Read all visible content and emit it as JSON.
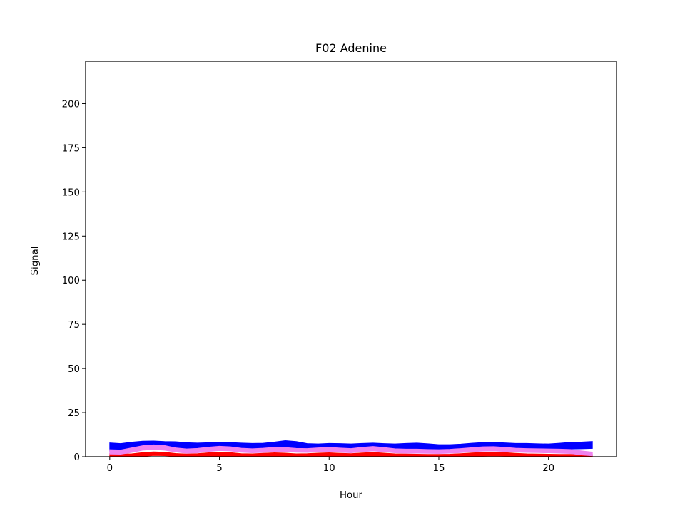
{
  "chart_data": {
    "type": "area",
    "title": "F02 Adenine",
    "xlabel": "Hour",
    "ylabel": "Signal",
    "xlim": [
      -1.1,
      23.1
    ],
    "ylim": [
      0,
      224
    ],
    "xticks": [
      0,
      5,
      10,
      15,
      20
    ],
    "yticks": [
      0,
      25,
      50,
      75,
      100,
      125,
      150,
      175,
      200
    ],
    "grid": false,
    "x": [
      0,
      0.5,
      1,
      1.5,
      2,
      2.5,
      3,
      3.5,
      4,
      4.5,
      5,
      5.5,
      6,
      6.5,
      7,
      7.5,
      8,
      8.5,
      9,
      9.5,
      10,
      10.5,
      11,
      11.5,
      12,
      12.5,
      13,
      13.5,
      14,
      14.5,
      15,
      15.5,
      16,
      16.5,
      17,
      17.5,
      18,
      18.5,
      19,
      19.5,
      20,
      20.5,
      21,
      21.5,
      22
    ],
    "series": [
      {
        "color": "#0000ff",
        "lower": [
          3.2,
          3.0,
          3.8,
          4.6,
          5.2,
          5.2,
          4.4,
          3.7,
          3.6,
          4.1,
          4.7,
          4.6,
          4.0,
          3.8,
          4.0,
          4.5,
          5.0,
          4.7,
          4.2,
          4.1,
          4.3,
          4.0,
          3.8,
          4.0,
          4.2,
          3.9,
          3.7,
          3.8,
          3.9,
          3.6,
          3.3,
          3.4,
          3.8,
          4.3,
          4.6,
          4.6,
          4.2,
          4.0,
          4.0,
          3.8,
          3.6,
          4.0,
          4.4,
          4.5,
          4.7
        ],
        "upper": [
          7.8,
          7.4,
          8.2,
          8.8,
          8.9,
          8.6,
          8.5,
          7.9,
          7.7,
          7.9,
          8.2,
          8.0,
          7.7,
          7.5,
          7.6,
          8.3,
          9.1,
          8.6,
          7.4,
          7.2,
          7.5,
          7.4,
          7.2,
          7.5,
          7.7,
          7.4,
          7.2,
          7.5,
          7.7,
          7.3,
          6.8,
          6.8,
          7.1,
          7.6,
          8.0,
          8.1,
          7.8,
          7.5,
          7.5,
          7.3,
          7.2,
          7.6,
          8.1,
          8.3,
          8.6
        ]
      },
      {
        "color": "#ff0000",
        "lower": [
          0.3,
          0.0,
          0.0,
          0.2,
          0.7,
          0.6,
          0.2,
          0.0,
          0.0,
          0.1,
          0.3,
          0.3,
          0.0,
          0.0,
          0.0,
          0.2,
          0.2,
          0.0,
          0.0,
          0.1,
          0.2,
          0.0,
          0.0,
          0.1,
          0.3,
          0.1,
          0.0,
          0.0,
          0.0,
          0.0,
          0.0,
          0.0,
          0.0,
          0.1,
          0.4,
          0.5,
          0.4,
          0.1,
          0.0,
          0.0,
          0.0,
          0.0,
          0.0,
          0.0,
          0.0
        ],
        "upper": [
          1.8,
          1.4,
          1.6,
          2.3,
          2.7,
          2.5,
          1.8,
          1.5,
          1.7,
          2.2,
          2.5,
          2.3,
          1.7,
          1.6,
          1.9,
          2.2,
          2.0,
          1.6,
          1.7,
          2.0,
          2.2,
          1.9,
          1.7,
          2.1,
          2.4,
          2.0,
          1.6,
          1.5,
          1.4,
          1.3,
          1.3,
          1.4,
          1.7,
          2.1,
          2.4,
          2.5,
          2.3,
          1.9,
          1.6,
          1.5,
          1.4,
          1.3,
          1.3,
          1.2,
          1.2
        ]
      },
      {
        "color": "#ee82ee",
        "lower": [
          1.5,
          1.4,
          2.4,
          3.7,
          4.1,
          3.7,
          2.7,
          2.0,
          2.2,
          3.0,
          3.5,
          3.3,
          2.5,
          2.2,
          2.4,
          2.9,
          2.9,
          2.5,
          2.4,
          2.7,
          2.9,
          2.5,
          2.2,
          2.8,
          3.3,
          2.8,
          2.2,
          2.0,
          2.0,
          1.9,
          1.8,
          2.0,
          2.3,
          2.8,
          3.2,
          3.3,
          3.0,
          2.6,
          2.4,
          2.3,
          2.2,
          2.0,
          1.8,
          1.0,
          0.5
        ],
        "upper": [
          4.0,
          3.8,
          5.0,
          6.2,
          6.7,
          6.3,
          5.0,
          4.4,
          4.7,
          5.4,
          5.9,
          5.6,
          4.8,
          4.5,
          4.8,
          5.3,
          5.2,
          4.7,
          4.6,
          5.0,
          5.3,
          4.9,
          4.6,
          5.3,
          5.8,
          5.2,
          4.5,
          4.3,
          4.3,
          4.1,
          4.0,
          4.2,
          4.6,
          5.1,
          5.6,
          5.7,
          5.3,
          4.8,
          4.6,
          4.5,
          4.4,
          4.3,
          4.1,
          3.3,
          2.6
        ]
      }
    ]
  }
}
